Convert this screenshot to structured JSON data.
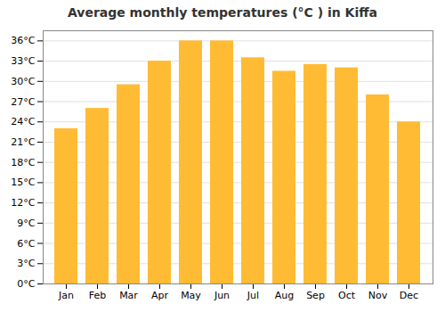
{
  "chart_data": {
    "type": "bar",
    "title": "Average monthly temperatures (°C ) in Kiffa",
    "categories": [
      "Jan",
      "Feb",
      "Mar",
      "Apr",
      "May",
      "Jun",
      "Jul",
      "Aug",
      "Sep",
      "Oct",
      "Nov",
      "Dec"
    ],
    "values": [
      23,
      26,
      29.5,
      33,
      36,
      36,
      33.5,
      31.5,
      32.5,
      32,
      28,
      24
    ],
    "color": "#FFBB33",
    "ylim": [
      0,
      37.5
    ],
    "yticks": [
      {
        "value": 0,
        "label": "0°C"
      },
      {
        "value": 3,
        "label": "3°C"
      },
      {
        "value": 6,
        "label": "6°C"
      },
      {
        "value": 9,
        "label": "9°C"
      },
      {
        "value": 12,
        "label": "12°C"
      },
      {
        "value": 15,
        "label": "15°C"
      },
      {
        "value": 18,
        "label": "18°C"
      },
      {
        "value": 21,
        "label": "21°C"
      },
      {
        "value": 24,
        "label": "24°C"
      },
      {
        "value": 27,
        "label": "27°C"
      },
      {
        "value": 30,
        "label": "30°C"
      },
      {
        "value": 33,
        "label": "33°C"
      },
      {
        "value": 36,
        "label": "36°C"
      }
    ],
    "grid": true
  }
}
